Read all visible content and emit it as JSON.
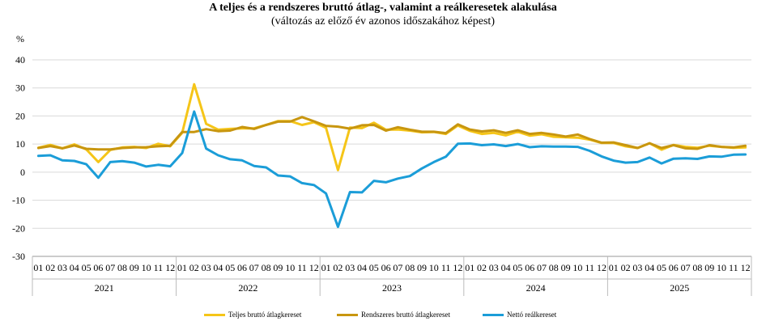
{
  "chart_data": {
    "type": "line",
    "title": "A teljes és a rendszeres bruttó átlag-, valamint a reálkeresetek alakulása",
    "subtitle": "(változás az előző év azonos időszakához képest)",
    "ylabel": "%",
    "ylim": [
      -30,
      40
    ],
    "yticks": [
      "40",
      "30",
      "20",
      "10",
      "0",
      "-10",
      "-20",
      "-30"
    ],
    "grid": true,
    "legend_position": "bottom",
    "months": [
      "01",
      "02",
      "03",
      "04",
      "05",
      "06",
      "07",
      "08",
      "09",
      "10",
      "11",
      "12"
    ],
    "years": [
      "2021",
      "2022",
      "2023",
      "2024",
      "2025"
    ],
    "series": [
      {
        "name": "Teljes bruttó átlagkereset",
        "color": "#F5C518",
        "values": [
          8.7,
          9.7,
          8.5,
          9.9,
          8.1,
          3.6,
          7.9,
          8.8,
          9.0,
          8.6,
          10.1,
          9.2,
          14.0,
          31.3,
          17.2,
          15.1,
          15.4,
          15.6,
          15.6,
          16.8,
          18.2,
          18.2,
          16.8,
          17.8,
          15.8,
          0.7,
          15.9,
          15.7,
          17.6,
          15.1,
          15.2,
          14.8,
          14.2,
          14.3,
          13.6,
          16.6,
          14.7,
          13.6,
          14.0,
          13.1,
          14.4,
          13.0,
          13.5,
          12.6,
          12.4,
          12.3,
          11.6,
          10.4,
          10.4,
          9.2,
          8.6,
          10.3,
          8.0,
          9.7,
          9.0,
          8.7,
          9.4,
          9.0,
          8.7,
          8.8
        ]
      },
      {
        "name": "Rendszeres bruttó átlagkereset",
        "color": "#C8960F",
        "values": [
          8.6,
          9.3,
          8.5,
          9.5,
          8.3,
          8.1,
          8.1,
          8.6,
          8.8,
          8.9,
          9.2,
          9.4,
          14.3,
          14.3,
          15.3,
          14.6,
          14.8,
          16.1,
          15.4,
          16.8,
          18.0,
          18.0,
          19.6,
          18.1,
          16.5,
          16.2,
          15.5,
          16.7,
          16.8,
          14.8,
          16.0,
          15.1,
          14.4,
          14.4,
          13.9,
          17.0,
          15.2,
          14.5,
          14.9,
          14.0,
          14.9,
          13.6,
          14.0,
          13.4,
          12.7,
          13.4,
          11.8,
          10.5,
          10.6,
          9.6,
          8.6,
          10.3,
          8.6,
          9.6,
          8.5,
          8.3,
          9.6,
          9.0,
          8.8,
          9.4
        ]
      },
      {
        "name": "Nettó reálkereset",
        "color": "#1B9DD8",
        "values": [
          5.8,
          6.0,
          4.2,
          4.0,
          2.8,
          -2.0,
          3.6,
          3.9,
          3.4,
          2.0,
          2.6,
          2.1,
          6.8,
          21.6,
          8.4,
          6.0,
          4.6,
          4.2,
          2.2,
          1.7,
          -1.2,
          -1.5,
          -3.9,
          -4.6,
          -7.6,
          -19.5,
          -7.1,
          -7.2,
          -3.1,
          -3.6,
          -2.3,
          -1.4,
          1.3,
          3.6,
          5.5,
          10.1,
          10.2,
          9.6,
          9.9,
          9.3,
          10.0,
          8.9,
          9.2,
          9.1,
          9.1,
          9.0,
          7.6,
          5.6,
          4.1,
          3.4,
          3.6,
          5.2,
          3.1,
          4.8,
          4.9,
          4.7,
          5.6,
          5.5,
          6.2,
          6.3
        ]
      }
    ]
  }
}
